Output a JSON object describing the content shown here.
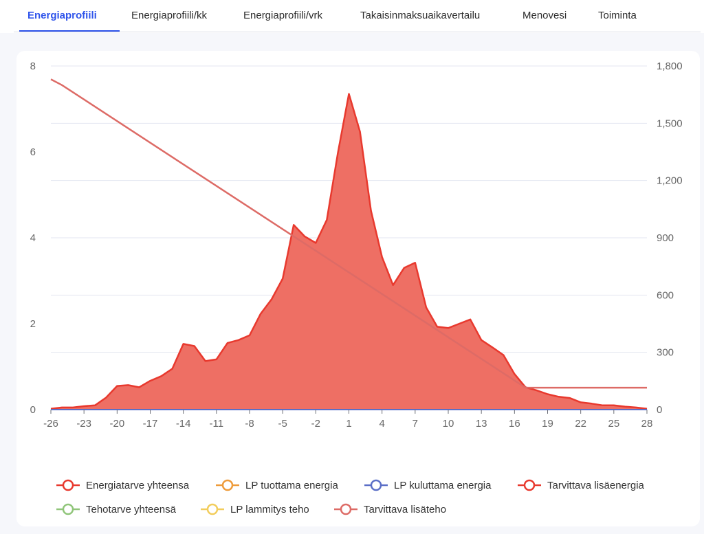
{
  "tabs": [
    {
      "label": "Energiaprofiili",
      "active": true
    },
    {
      "label": "Energiaprofiili/kk",
      "active": false
    },
    {
      "label": "Energiaprofiili/vrk",
      "active": false
    },
    {
      "label": "Takaisinmaksuaikavertailu",
      "active": false
    },
    {
      "label": "Menovesi",
      "active": false
    },
    {
      "label": "Toiminta",
      "active": false
    }
  ],
  "colors": {
    "accent": "#2f54eb",
    "energy_total": "#e8392e",
    "energy_fill": "#ee6f64",
    "hp_produced": "#ee9b3a",
    "hp_consumed": "#5b6fc7",
    "extra_energy": "#e8392e",
    "power_total": "#90c57a",
    "hp_heating_power": "#f2cd5c",
    "extra_power": "#dd6b66"
  },
  "chart_data": {
    "type": "area",
    "x": [
      -26,
      -25,
      -24,
      -23,
      -22,
      -21,
      -20,
      -19,
      -18,
      -17,
      -16,
      -15,
      -14,
      -13,
      -12,
      -11,
      -10,
      -9,
      -8,
      -7,
      -6,
      -5,
      -4,
      -3,
      -2,
      -1,
      0,
      1,
      2,
      3,
      4,
      5,
      6,
      7,
      8,
      9,
      10,
      11,
      12,
      13,
      14,
      15,
      16,
      17,
      18,
      19,
      20,
      21,
      22,
      23,
      24,
      25,
      26,
      27,
      28
    ],
    "x_ticks": [
      -26,
      -23,
      -20,
      -17,
      -14,
      -11,
      -8,
      -5,
      -2,
      1,
      4,
      7,
      10,
      13,
      16,
      19,
      22,
      25,
      28
    ],
    "y_left": {
      "min": 0,
      "max": 8,
      "ticks": [
        "0",
        "2",
        "4",
        "6",
        "8"
      ]
    },
    "y_right": {
      "min": 0,
      "max": 1800,
      "ticks": [
        "0",
        "300",
        "600",
        "900",
        "1,200",
        "1,500",
        "1,800"
      ]
    },
    "grid": true,
    "legend_position": "bottom",
    "series": [
      {
        "name": "Energiatarve yhteensa",
        "axis": "left",
        "kind": "area",
        "values": [
          0.02,
          0.05,
          0.05,
          0.08,
          0.1,
          0.28,
          0.55,
          0.57,
          0.52,
          0.67,
          0.78,
          0.95,
          1.53,
          1.48,
          1.13,
          1.17,
          1.55,
          1.62,
          1.73,
          2.23,
          2.57,
          3.05,
          4.3,
          4.03,
          3.88,
          4.42,
          5.97,
          7.35,
          6.47,
          4.63,
          3.55,
          2.9,
          3.3,
          3.42,
          2.38,
          1.93,
          1.9,
          2.0,
          2.1,
          1.62,
          1.45,
          1.27,
          0.83,
          0.52,
          0.45,
          0.36,
          0.3,
          0.27,
          0.17,
          0.14,
          0.1,
          0.1,
          0.07,
          0.05,
          0.02
        ]
      },
      {
        "name": "LP tuottama energia",
        "axis": "left",
        "kind": "line",
        "values": "zero"
      },
      {
        "name": "LP kuluttama energia",
        "axis": "left",
        "kind": "line",
        "values": "zero"
      },
      {
        "name": "Tarvittava lisäenergia",
        "axis": "left",
        "kind": "line",
        "values": "same_as_total"
      },
      {
        "name": "Tehotarve yhteensä",
        "axis": "right",
        "kind": "line",
        "values": "hidden"
      },
      {
        "name": "LP lammitys teho",
        "axis": "right",
        "kind": "line",
        "values": "hidden"
      },
      {
        "name": "Tarvittava lisäteho",
        "axis": "right",
        "kind": "line",
        "points": [
          [
            -26,
            1730
          ],
          [
            -25,
            1700
          ],
          [
            17,
            115
          ],
          [
            28,
            115
          ]
        ]
      }
    ]
  }
}
